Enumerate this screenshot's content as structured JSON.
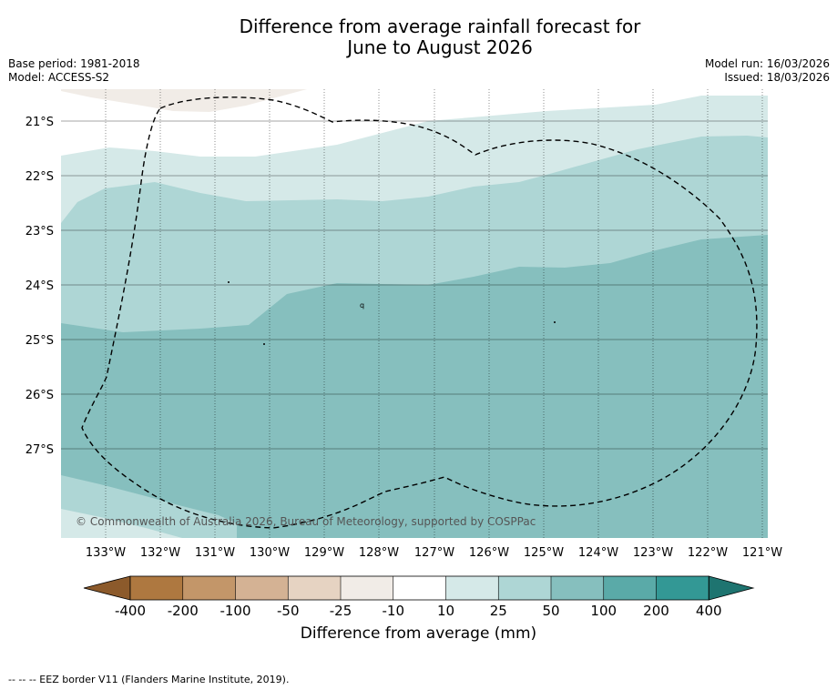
{
  "header": {
    "title_line1": "Difference from average rainfall forecast for",
    "title_line2": "June to August 2026",
    "base_period": "Base period: 1981-2018",
    "model": "Model: ACCESS-S2",
    "model_run": "Model run: 16/03/2026",
    "issued": "Issued: 18/03/2026"
  },
  "map": {
    "lat_labels": [
      "21°S",
      "22°S",
      "23°S",
      "24°S",
      "25°S",
      "26°S",
      "27°S"
    ],
    "lon_labels": [
      "133°W",
      "132°W",
      "131°W",
      "130°W",
      "129°W",
      "128°W",
      "127°W",
      "126°W",
      "125°W",
      "124°W",
      "123°W",
      "122°W",
      "121°W"
    ],
    "copyright": "© Commonwealth of Australia 2026, Bureau of Meteorology, supported by COSPPac",
    "island_marker": "q"
  },
  "colorbar": {
    "ticks": [
      "-400",
      "-200",
      "-100",
      "-50",
      "-25",
      "-10",
      "10",
      "25",
      "50",
      "100",
      "200",
      "400"
    ],
    "colors": [
      "#8c5a2b",
      "#ae7840",
      "#c39669",
      "#d4b294",
      "#e6d3c2",
      "#f1ece7",
      "#ffffff",
      "#d5e9e8",
      "#aed6d5",
      "#86bfbe",
      "#5aaaa8",
      "#339895",
      "#1e7470"
    ],
    "label": "Difference from average (mm)"
  },
  "footnote": "--  --  -- EEZ border V11 (Flanders Marine Institute, 2019)."
}
